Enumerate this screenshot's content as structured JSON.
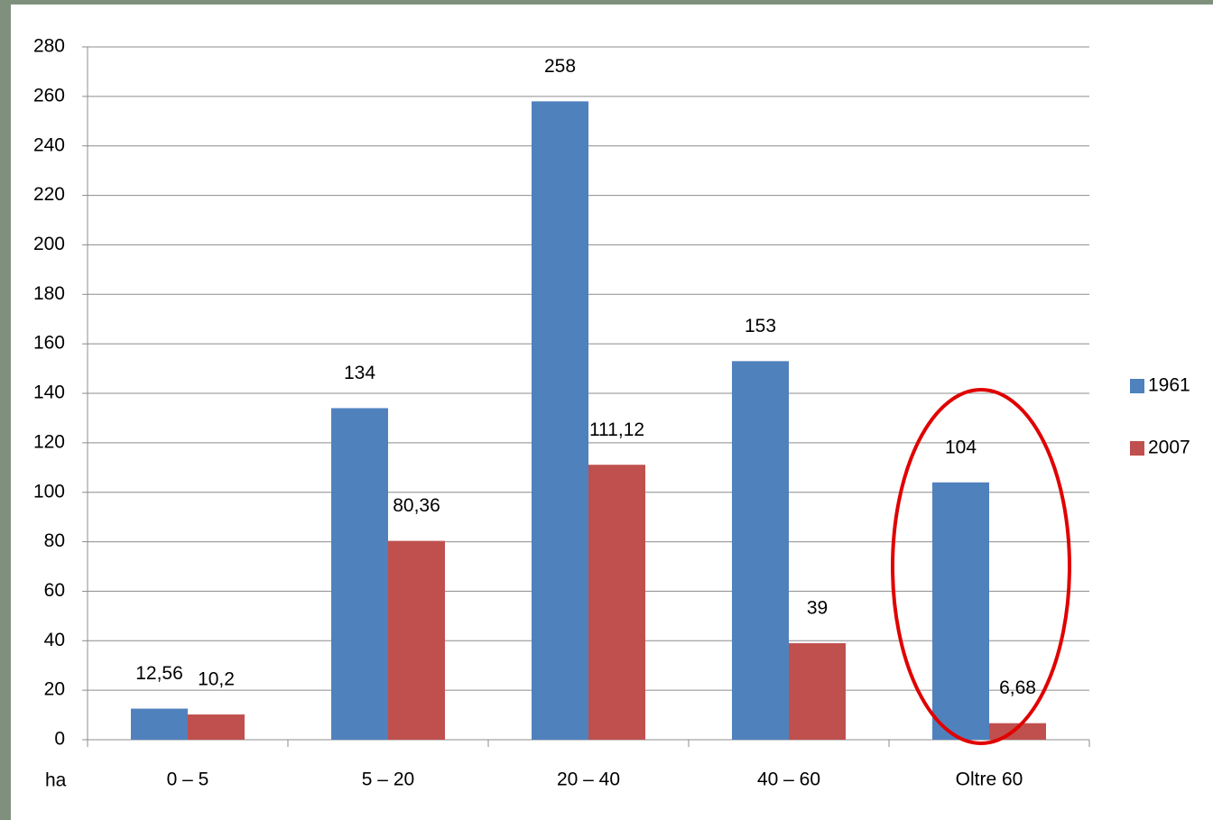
{
  "chart_data": {
    "type": "bar",
    "categories": [
      "0 – 5",
      "5 – 20",
      "20 – 40",
      "40 – 60",
      "Oltre 60"
    ],
    "series": [
      {
        "name": "1961",
        "color": "#4f81bd",
        "values": [
          12.56,
          134,
          258,
          153,
          104
        ],
        "value_labels": [
          "12,56",
          "134",
          "258",
          "153",
          "104"
        ]
      },
      {
        "name": "2007",
        "color": "#c0504d",
        "values": [
          10.2,
          80.36,
          111.12,
          39,
          6.68
        ],
        "value_labels": [
          "10,2",
          "80,36",
          "111,12",
          "39",
          "6,68"
        ]
      }
    ],
    "ylim": [
      0,
      280
    ],
    "yticks": [
      0,
      20,
      40,
      60,
      80,
      100,
      120,
      140,
      160,
      180,
      200,
      220,
      240,
      260,
      280
    ],
    "grid": true,
    "legend": "right",
    "x_annotation": "ha"
  }
}
